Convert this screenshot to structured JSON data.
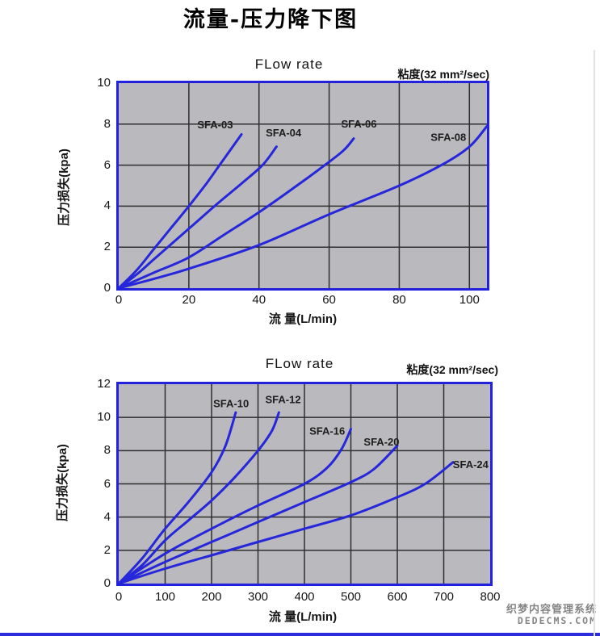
{
  "page": {
    "title": "流量-压力降下图",
    "watermark_line1": "织梦内容管理系统",
    "watermark_line2": "DEDECMS.COM"
  },
  "chart_data": [
    {
      "type": "line",
      "title": "FLow rate",
      "viscosity_note": "粘度(32 mm²/sec)",
      "xlabel": "流 量(L/min)",
      "ylabel": "压力损失(kpa)",
      "xlim": [
        0,
        105
      ],
      "ylim": [
        0,
        10
      ],
      "x_ticks": [
        0,
        20,
        40,
        60,
        80,
        100
      ],
      "y_ticks": [
        0,
        2,
        4,
        6,
        8,
        10
      ],
      "grid": true,
      "legend_position": "inline-labels",
      "colors": {
        "plot_bg": "#bababe",
        "grid": "#2e2e2e",
        "line": "#2626db",
        "border": "#2222dd"
      },
      "series": [
        {
          "name": "SFA-03",
          "label_at": [
            27.5,
            7.95
          ],
          "points": [
            [
              0,
              0
            ],
            [
              5,
              0.85
            ],
            [
              10,
              1.9
            ],
            [
              15,
              2.95
            ],
            [
              20,
              4.0
            ],
            [
              25,
              5.1
            ],
            [
              30,
              6.3
            ],
            [
              35,
              7.5
            ]
          ]
        },
        {
          "name": "SFA-04",
          "label_at": [
            47,
            7.55
          ],
          "points": [
            [
              0,
              0
            ],
            [
              5,
              0.65
            ],
            [
              10,
              1.4
            ],
            [
              20,
              2.9
            ],
            [
              28,
              4.1
            ],
            [
              35,
              5.1
            ],
            [
              41,
              6.0
            ],
            [
              45,
              6.9
            ]
          ]
        },
        {
          "name": "SFA-06",
          "label_at": [
            68.5,
            8.0
          ],
          "points": [
            [
              0,
              0
            ],
            [
              10,
              0.75
            ],
            [
              20,
              1.5
            ],
            [
              30,
              2.6
            ],
            [
              40,
              3.7
            ],
            [
              50,
              4.9
            ],
            [
              58,
              5.9
            ],
            [
              64,
              6.7
            ],
            [
              67,
              7.3
            ]
          ]
        },
        {
          "name": "SFA-08",
          "label_at": [
            94,
            7.35
          ],
          "points": [
            [
              0,
              0
            ],
            [
              10,
              0.45
            ],
            [
              20,
              0.95
            ],
            [
              40,
              2.1
            ],
            [
              60,
              3.6
            ],
            [
              80,
              5.0
            ],
            [
              92,
              6.0
            ],
            [
              100,
              6.9
            ],
            [
              105,
              7.9
            ]
          ]
        }
      ]
    },
    {
      "type": "line",
      "title": "FLow rate",
      "viscosity_note": "粘度(32 mm²/sec)",
      "xlabel": "流 量(L/min)",
      "ylabel": "压力损失(kpa)",
      "xlim": [
        0,
        800
      ],
      "ylim": [
        0,
        12
      ],
      "x_ticks": [
        0,
        100,
        200,
        300,
        400,
        500,
        600,
        700,
        800
      ],
      "y_ticks": [
        0,
        2,
        4,
        6,
        8,
        10,
        12
      ],
      "grid": true,
      "legend_position": "inline-labels",
      "colors": {
        "plot_bg": "#bababe",
        "grid": "#2e2e2e",
        "line": "#2626db",
        "border": "#2222dd"
      },
      "series": [
        {
          "name": "SFA-10",
          "label_at": [
            242,
            10.8
          ],
          "points": [
            [
              0,
              0
            ],
            [
              50,
              1.5
            ],
            [
              100,
              3.3
            ],
            [
              150,
              4.9
            ],
            [
              200,
              6.7
            ],
            [
              230,
              8.3
            ],
            [
              252,
              10.3
            ]
          ]
        },
        {
          "name": "SFA-12",
          "label_at": [
            354,
            11.05
          ],
          "points": [
            [
              0,
              0
            ],
            [
              50,
              1.1
            ],
            [
              100,
              2.6
            ],
            [
              150,
              3.8
            ],
            [
              200,
              5.0
            ],
            [
              250,
              6.4
            ],
            [
              300,
              8.0
            ],
            [
              330,
              9.2
            ],
            [
              345,
              10.3
            ]
          ]
        },
        {
          "name": "SFA-16",
          "label_at": [
            449,
            9.15
          ],
          "points": [
            [
              0,
              0
            ],
            [
              100,
              1.8
            ],
            [
              200,
              3.3
            ],
            [
              300,
              4.7
            ],
            [
              400,
              6.0
            ],
            [
              450,
              7.0
            ],
            [
              480,
              8.1
            ],
            [
              500,
              9.3
            ]
          ]
        },
        {
          "name": "SFA-20",
          "label_at": [
            566,
            8.5
          ],
          "points": [
            [
              0,
              0
            ],
            [
              100,
              1.3
            ],
            [
              200,
              2.5
            ],
            [
              300,
              3.7
            ],
            [
              400,
              4.9
            ],
            [
              500,
              6.1
            ],
            [
              550,
              6.9
            ],
            [
              600,
              8.3
            ]
          ]
        },
        {
          "name": "SFA-24",
          "label_at": [
            758,
            7.15
          ],
          "points": [
            [
              0,
              0
            ],
            [
              100,
              0.9
            ],
            [
              200,
              1.7
            ],
            [
              300,
              2.5
            ],
            [
              400,
              3.3
            ],
            [
              500,
              4.1
            ],
            [
              600,
              5.2
            ],
            [
              660,
              6.0
            ],
            [
              720,
              7.3
            ]
          ]
        }
      ]
    }
  ]
}
